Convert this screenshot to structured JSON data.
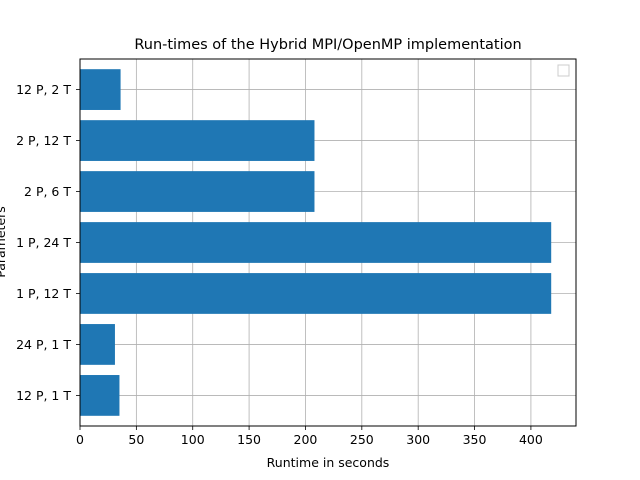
{
  "chart_data": {
    "type": "bar",
    "orientation": "horizontal",
    "title": "Run-times of the Hybrid MPI/OpenMP implementation",
    "xlabel": "Runtime in seconds",
    "ylabel": "Parameters",
    "categories": [
      "12 P, 1 T",
      "24 P, 1 T",
      "1 P, 12 T",
      "1 P, 24 T",
      "2 P, 6 T",
      "2 P, 12 T",
      "12 P, 2 T"
    ],
    "values": [
      35,
      31,
      418,
      418,
      208,
      208,
      36
    ],
    "xlim": [
      0,
      440
    ],
    "xticks": [
      0,
      50,
      100,
      150,
      200,
      250,
      300,
      350,
      400
    ],
    "grid": true,
    "legend": "top-right",
    "colors": {
      "bar": "#1f77b4",
      "grid": "#b0b0b0",
      "axis": "#000000"
    }
  }
}
